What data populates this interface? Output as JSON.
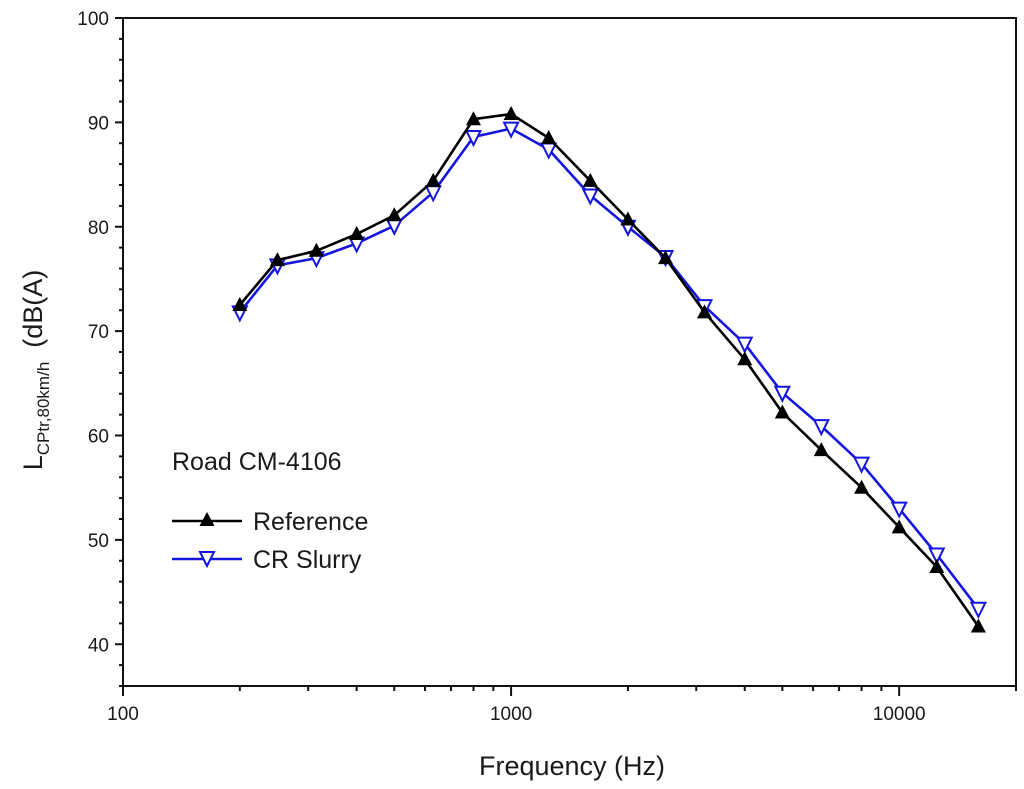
{
  "chart_data": {
    "type": "line",
    "title": "",
    "xlabel": "Frequency (Hz)",
    "ylabel": {
      "main": "L",
      "subscript": "CPtr,80km/h",
      "unit": "(dB(A)"
    },
    "xscale": "log",
    "xlim": [
      100,
      20000
    ],
    "ylim": [
      36,
      100
    ],
    "x_ticks": [
      100,
      1000,
      10000
    ],
    "x_tick_labels": [
      "100",
      "1000",
      "10000"
    ],
    "y_ticks": [
      40,
      50,
      60,
      70,
      80,
      90,
      100
    ],
    "y_tick_labels": [
      "40",
      "50",
      "60",
      "70",
      "80",
      "90",
      "100"
    ],
    "grid": false,
    "annotation": "Road CM-4106",
    "legend_position": "middle-left",
    "x": [
      200,
      250,
      315,
      400,
      500,
      630,
      800,
      1000,
      1250,
      1600,
      2000,
      2500,
      3150,
      4000,
      5000,
      6300,
      8000,
      10000,
      12500,
      16000
    ],
    "series": [
      {
        "name": "Reference",
        "marker": "triangle-up-filled",
        "color": "#000000",
        "values": [
          72.5,
          76.8,
          77.7,
          79.3,
          81.1,
          84.4,
          90.3,
          90.8,
          88.5,
          84.4,
          80.7,
          77.0,
          71.8,
          67.3,
          62.2,
          58.6,
          55.0,
          51.2,
          47.4,
          41.7
        ]
      },
      {
        "name": "CR Slurry",
        "marker": "triangle-down-open",
        "color": "#1515e0",
        "values": [
          71.8,
          76.3,
          77.0,
          78.4,
          80.1,
          83.3,
          88.6,
          89.4,
          87.4,
          83.0,
          80.0,
          77.1,
          72.4,
          68.8,
          64.1,
          60.9,
          57.3,
          53.0,
          48.6,
          43.4
        ]
      }
    ]
  }
}
